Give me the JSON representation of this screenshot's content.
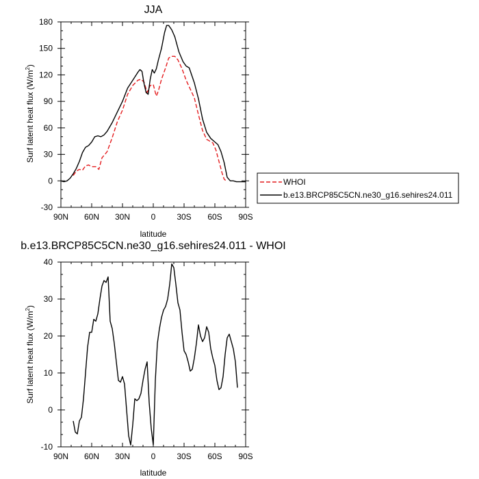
{
  "chart_data": [
    {
      "type": "line",
      "title": "JJA",
      "xlabel": "latitude",
      "ylabel": "Surf latent heat flux (W/m²)",
      "xlim": [
        90,
        -90
      ],
      "ylim": [
        -30,
        180
      ],
      "xticks": [
        90,
        60,
        30,
        0,
        -30,
        -60,
        -90
      ],
      "xtick_labels": [
        "90N",
        "60N",
        "30N",
        "0",
        "30S",
        "60S",
        "90S"
      ],
      "yticks": [
        -30,
        0,
        30,
        60,
        90,
        120,
        150,
        180
      ],
      "ytick_labels": [
        "-30",
        "0",
        "30",
        "60",
        "90",
        "120",
        "150",
        "180"
      ],
      "legend_position": "right",
      "series": [
        {
          "name": "WHOI",
          "color": "#e41a1c",
          "dash": "dashed",
          "points": [
            [
              78,
              6
            ],
            [
              75,
              11
            ],
            [
              72,
              13
            ],
            [
              69,
              12
            ],
            [
              66,
              17
            ],
            [
              63,
              18
            ],
            [
              60,
              16
            ],
            [
              56,
              16
            ],
            [
              53,
              13
            ],
            [
              50,
              26
            ],
            [
              45,
              33
            ],
            [
              40,
              49
            ],
            [
              35,
              67
            ],
            [
              30,
              80
            ],
            [
              25,
              98
            ],
            [
              20,
              108
            ],
            [
              15,
              114
            ],
            [
              12,
              115
            ],
            [
              9,
              112
            ],
            [
              6,
              100
            ],
            [
              3,
              108
            ],
            [
              0,
              109
            ],
            [
              -2,
              100
            ],
            [
              -3,
              96
            ],
            [
              -5,
              102
            ],
            [
              -8,
              115
            ],
            [
              -12,
              128
            ],
            [
              -15,
              139
            ],
            [
              -18,
              141
            ],
            [
              -21,
              141
            ],
            [
              -24,
              137
            ],
            [
              -28,
              127
            ],
            [
              -32,
              114
            ],
            [
              -36,
              104
            ],
            [
              -40,
              94
            ],
            [
              -44,
              75
            ],
            [
              -48,
              57
            ],
            [
              -52,
              47
            ],
            [
              -55,
              45
            ],
            [
              -58,
              43
            ],
            [
              -61,
              35
            ],
            [
              -64,
              22
            ],
            [
              -67,
              9
            ],
            [
              -69,
              2
            ],
            [
              -71,
              0
            ]
          ]
        },
        {
          "name": "b.e13.BRCP85C5CN.ne30_g16.sehires24.011",
          "color": "#000000",
          "dash": "solid",
          "points": [
            [
              90,
              0
            ],
            [
              87,
              -1
            ],
            [
              84,
              0
            ],
            [
              81,
              3
            ],
            [
              78,
              8
            ],
            [
              75,
              14
            ],
            [
              72,
              22
            ],
            [
              69,
              32
            ],
            [
              66,
              38
            ],
            [
              63,
              40
            ],
            [
              60,
              44
            ],
            [
              57,
              50
            ],
            [
              54,
              51
            ],
            [
              51,
              50
            ],
            [
              48,
              52
            ],
            [
              45,
              56
            ],
            [
              40,
              66
            ],
            [
              35,
              78
            ],
            [
              30,
              90
            ],
            [
              25,
              105
            ],
            [
              20,
              114
            ],
            [
              15,
              123
            ],
            [
              13,
              126
            ],
            [
              11,
              124
            ],
            [
              9,
              110
            ],
            [
              7,
              100
            ],
            [
              5,
              98
            ],
            [
              3,
              115
            ],
            [
              1,
              126
            ],
            [
              -1,
              122
            ],
            [
              -3,
              127
            ],
            [
              -5,
              137
            ],
            [
              -8,
              150
            ],
            [
              -11,
              168
            ],
            [
              -13,
              176
            ],
            [
              -15,
              176
            ],
            [
              -18,
              171
            ],
            [
              -21,
              163
            ],
            [
              -25,
              146
            ],
            [
              -29,
              135
            ],
            [
              -32,
              130
            ],
            [
              -35,
              128
            ],
            [
              -40,
              111
            ],
            [
              -44,
              93
            ],
            [
              -48,
              70
            ],
            [
              -52,
              55
            ],
            [
              -56,
              48
            ],
            [
              -60,
              44
            ],
            [
              -63,
              41
            ],
            [
              -66,
              33
            ],
            [
              -69,
              21
            ],
            [
              -72,
              4
            ],
            [
              -75,
              0
            ],
            [
              -78,
              0
            ],
            [
              -81,
              -1
            ],
            [
              -84,
              -1
            ],
            [
              -87,
              -1
            ],
            [
              -90,
              -1
            ]
          ]
        }
      ]
    },
    {
      "type": "line",
      "title": "b.e13.BRCP85C5CN.ne30_g16.sehires24.011 - WHOI",
      "xlabel": "latitude",
      "ylabel": "Surf latent heat flux (W/m²)",
      "xlim": [
        90,
        -90
      ],
      "ylim": [
        -10,
        40
      ],
      "xticks": [
        90,
        60,
        30,
        0,
        -30,
        -60,
        -90
      ],
      "xtick_labels": [
        "90N",
        "60N",
        "30N",
        "0",
        "30S",
        "60S",
        "90S"
      ],
      "yticks": [
        -10,
        0,
        10,
        20,
        30,
        40
      ],
      "ytick_labels": [
        "-10",
        "0",
        "10",
        "20",
        "30",
        "40"
      ],
      "series": [
        {
          "color": "#000000",
          "dash": "solid",
          "points": [
            [
              78,
              -3
            ],
            [
              76,
              -6
            ],
            [
              74,
              -6.5
            ],
            [
              72,
              -3
            ],
            [
              70,
              -2
            ],
            [
              68,
              3
            ],
            [
              66,
              10
            ],
            [
              64,
              17
            ],
            [
              62,
              21
            ],
            [
              60,
              21
            ],
            [
              58,
              24.5
            ],
            [
              56,
              24
            ],
            [
              54,
              26
            ],
            [
              52,
              30
            ],
            [
              50,
              33.5
            ],
            [
              48,
              35
            ],
            [
              46,
              34.5
            ],
            [
              44,
              36
            ],
            [
              42,
              24
            ],
            [
              40,
              22
            ],
            [
              38,
              18
            ],
            [
              36,
              13
            ],
            [
              34,
              8
            ],
            [
              32,
              7.5
            ],
            [
              30,
              9
            ],
            [
              28,
              7
            ],
            [
              26,
              0
            ],
            [
              24,
              -7
            ],
            [
              22,
              -9.5
            ],
            [
              20,
              -4
            ],
            [
              18,
              3
            ],
            [
              16,
              2.5
            ],
            [
              14,
              3
            ],
            [
              12,
              4.5
            ],
            [
              10,
              8
            ],
            [
              8,
              11
            ],
            [
              6,
              13
            ],
            [
              4,
              2
            ],
            [
              2,
              -5
            ],
            [
              0,
              -9.5
            ],
            [
              -2,
              8
            ],
            [
              -4,
              18
            ],
            [
              -6,
              22
            ],
            [
              -8,
              25
            ],
            [
              -10,
              27
            ],
            [
              -12,
              28
            ],
            [
              -14,
              30
            ],
            [
              -16,
              34
            ],
            [
              -18,
              39.5
            ],
            [
              -20,
              38.5
            ],
            [
              -22,
              34
            ],
            [
              -24,
              29
            ],
            [
              -26,
              27
            ],
            [
              -28,
              21
            ],
            [
              -30,
              16
            ],
            [
              -32,
              15
            ],
            [
              -34,
              13
            ],
            [
              -36,
              10.5
            ],
            [
              -38,
              11
            ],
            [
              -40,
              14
            ],
            [
              -42,
              18
            ],
            [
              -44,
              23
            ],
            [
              -46,
              20
            ],
            [
              -48,
              18.5
            ],
            [
              -50,
              19.5
            ],
            [
              -52,
              22.5
            ],
            [
              -54,
              21
            ],
            [
              -56,
              16.5
            ],
            [
              -58,
              14
            ],
            [
              -60,
              12
            ],
            [
              -62,
              8
            ],
            [
              -64,
              5.5
            ],
            [
              -66,
              6
            ],
            [
              -68,
              9
            ],
            [
              -70,
              15
            ],
            [
              -72,
              19.5
            ],
            [
              -74,
              20.5
            ],
            [
              -76,
              18.5
            ],
            [
              -78,
              16.5
            ],
            [
              -80,
              13
            ],
            [
              -82,
              6
            ]
          ]
        }
      ]
    }
  ]
}
